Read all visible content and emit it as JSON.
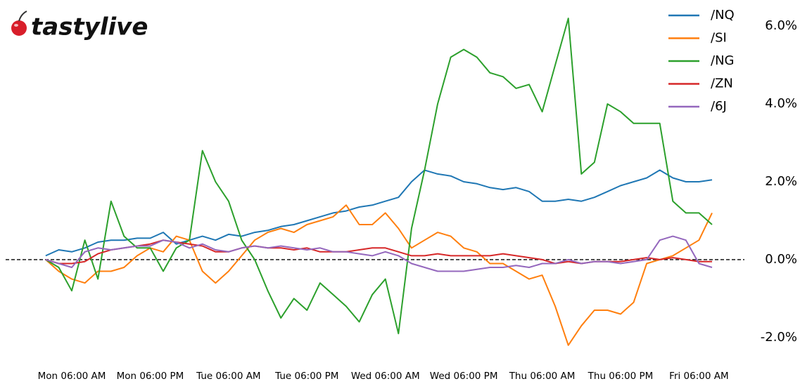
{
  "logo": "tastylive",
  "chart_data": {
    "type": "line",
    "categories": [
      null,
      null,
      "Mon 06:00 AM",
      null,
      null,
      null,
      null,
      null,
      "Mon 06:00 PM",
      null,
      null,
      null,
      null,
      null,
      "Tue 06:00 AM",
      null,
      null,
      null,
      null,
      null,
      "Tue 06:00 PM",
      null,
      null,
      null,
      null,
      null,
      "Wed 06:00 AM",
      null,
      null,
      null,
      null,
      null,
      "Wed 06:00 PM",
      null,
      null,
      null,
      null,
      null,
      "Thu 06:00 AM",
      null,
      null,
      null,
      null,
      null,
      "Thu 06:00 PM",
      null,
      null,
      null,
      null,
      null,
      "Fri 06:00 AM",
      null
    ],
    "series": [
      {
        "name": "/NQ",
        "color": "#1f77b4",
        "values": [
          0.1,
          0.25,
          0.2,
          0.3,
          0.45,
          0.5,
          0.5,
          0.55,
          0.55,
          0.7,
          0.4,
          0.5,
          0.6,
          0.5,
          0.65,
          0.6,
          0.7,
          0.75,
          0.85,
          0.9,
          1.0,
          1.1,
          1.2,
          1.25,
          1.35,
          1.4,
          1.5,
          1.6,
          2.0,
          2.3,
          2.2,
          2.15,
          2.0,
          1.95,
          1.85,
          1.8,
          1.85,
          1.75,
          1.5,
          1.5,
          1.55,
          1.5,
          1.6,
          1.75,
          1.9,
          2.0,
          2.1,
          2.3,
          2.1,
          2.0,
          2.0,
          2.05
        ]
      },
      {
        "name": "/SI",
        "color": "#ff7f0e",
        "values": [
          0,
          -0.3,
          -0.5,
          -0.6,
          -0.3,
          -0.3,
          -0.2,
          0.1,
          0.3,
          0.2,
          0.6,
          0.5,
          -0.3,
          -0.6,
          -0.3,
          0.1,
          0.5,
          0.7,
          0.8,
          0.7,
          0.9,
          1.0,
          1.1,
          1.4,
          0.9,
          0.9,
          1.2,
          0.8,
          0.3,
          0.5,
          0.7,
          0.6,
          0.3,
          0.2,
          -0.1,
          -0.1,
          -0.3,
          -0.5,
          -0.4,
          -1.2,
          -2.2,
          -1.7,
          -1.3,
          -1.3,
          -1.4,
          -1.1,
          -0.1,
          0.0,
          0.1,
          0.3,
          0.5,
          1.2
        ]
      },
      {
        "name": "/NG",
        "color": "#2ca02c",
        "values": [
          0,
          -0.2,
          -0.8,
          0.5,
          -0.5,
          1.5,
          0.6,
          0.3,
          0.3,
          -0.3,
          0.3,
          0.5,
          2.8,
          2.0,
          1.5,
          0.5,
          0.0,
          -0.8,
          -1.5,
          -1.0,
          -1.3,
          -0.6,
          -0.9,
          -1.2,
          -1.6,
          -0.9,
          -0.5,
          -1.9,
          0.8,
          2.3,
          4.0,
          5.2,
          5.4,
          5.2,
          4.8,
          4.7,
          4.4,
          4.5,
          3.8,
          5.0,
          6.2,
          2.2,
          2.5,
          4.0,
          3.8,
          3.5,
          3.5,
          3.5,
          1.5,
          1.2,
          1.2,
          0.9
        ]
      },
      {
        "name": "/ZN",
        "color": "#d62728",
        "values": [
          0,
          -0.1,
          -0.1,
          -0.05,
          0.15,
          0.25,
          0.3,
          0.35,
          0.4,
          0.5,
          0.45,
          0.4,
          0.35,
          0.2,
          0.2,
          0.3,
          0.35,
          0.3,
          0.3,
          0.25,
          0.3,
          0.2,
          0.2,
          0.2,
          0.25,
          0.3,
          0.3,
          0.2,
          0.1,
          0.1,
          0.15,
          0.1,
          0.1,
          0.1,
          0.1,
          0.15,
          0.1,
          0.05,
          0.0,
          -0.1,
          -0.05,
          -0.1,
          -0.05,
          -0.05,
          -0.05,
          0.0,
          0.05,
          0.0,
          0.05,
          0.0,
          -0.05,
          -0.05
        ]
      },
      {
        "name": "/6J",
        "color": "#9467bd",
        "values": [
          0,
          -0.1,
          -0.2,
          0.2,
          0.3,
          0.25,
          0.3,
          0.35,
          0.35,
          0.5,
          0.45,
          0.3,
          0.4,
          0.25,
          0.2,
          0.3,
          0.35,
          0.3,
          0.35,
          0.3,
          0.25,
          0.3,
          0.2,
          0.2,
          0.15,
          0.1,
          0.2,
          0.1,
          -0.1,
          -0.2,
          -0.3,
          -0.3,
          -0.3,
          -0.25,
          -0.2,
          -0.2,
          -0.15,
          -0.2,
          -0.1,
          -0.1,
          0.0,
          -0.1,
          -0.05,
          -0.05,
          -0.1,
          -0.05,
          0.0,
          0.5,
          0.6,
          0.5,
          -0.1,
          -0.2
        ]
      }
    ],
    "ylim": [
      -2.4,
      6.4
    ],
    "yticks": [
      {
        "value": -2,
        "label": "-2.0%"
      },
      {
        "value": 0,
        "label": "0.0%"
      },
      {
        "value": 2,
        "label": "2.0%"
      },
      {
        "value": 4,
        "label": "4.0%"
      },
      {
        "value": 6,
        "label": "6.0%"
      }
    ],
    "hline": 0,
    "legend": "upper right"
  }
}
